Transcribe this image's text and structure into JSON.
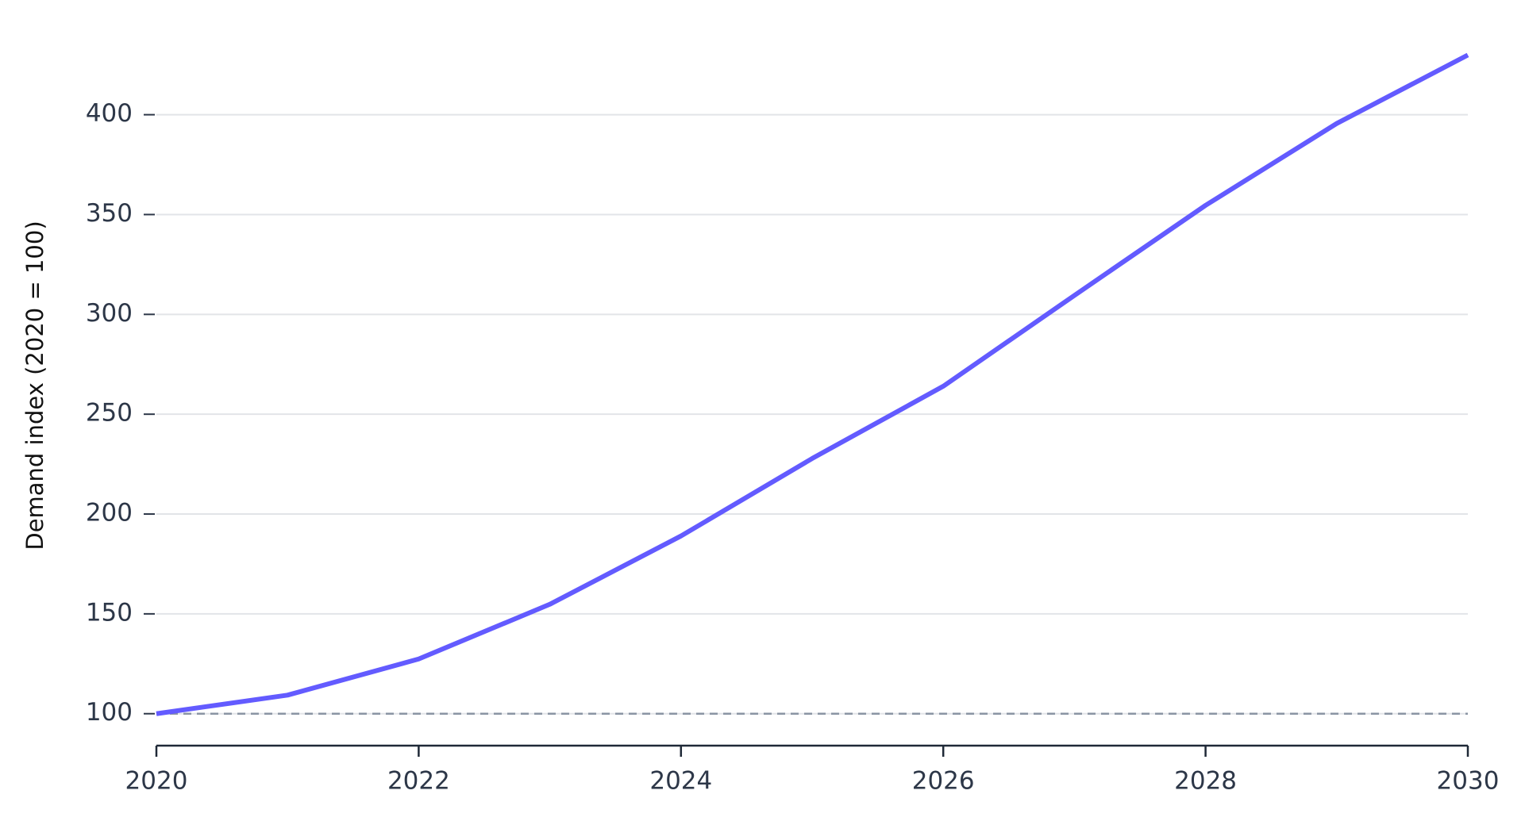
{
  "chart_data": {
    "type": "line",
    "y_label": "Demand index (2020 = 100)",
    "x": [
      2020,
      2021,
      2022,
      2023,
      2024,
      2025,
      2026,
      2027,
      2028,
      2029,
      2030
    ],
    "series": [
      {
        "color": "#635bff",
        "values": [
          100,
          109.3,
          127.4,
          154.8,
          189,
          227.8,
          264,
          309.5,
          354.6,
          395.6,
          429.9
        ]
      }
    ],
    "xlim": [
      2020,
      2030
    ],
    "xticks": [
      2020,
      2022,
      2024,
      2026,
      2028,
      2030
    ],
    "ylim": [
      84,
      436
    ],
    "yticks": [
      100,
      150,
      200,
      250,
      300,
      350,
      400
    ],
    "grid": true,
    "reference_line": 100
  }
}
